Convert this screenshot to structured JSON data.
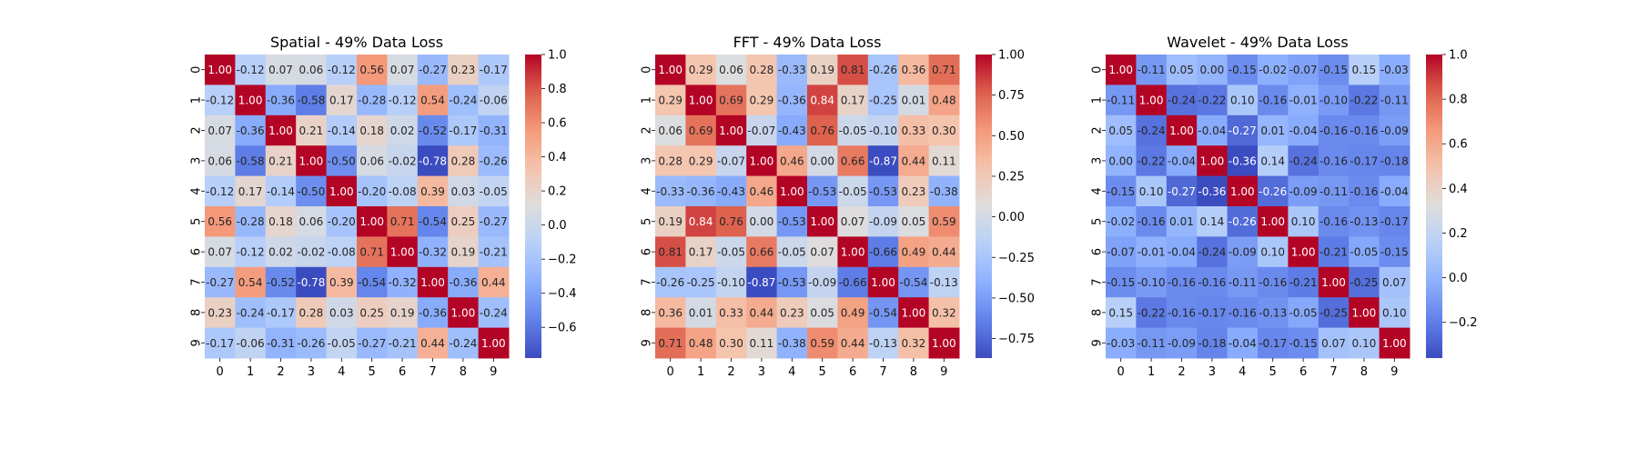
{
  "chart_data": [
    {
      "type": "heatmap",
      "title": "Spatial - 49% Data Loss",
      "xlabel": "",
      "ylabel": "",
      "x": [
        "0",
        "1",
        "2",
        "3",
        "4",
        "5",
        "6",
        "7",
        "8",
        "9"
      ],
      "y": [
        "0",
        "1",
        "2",
        "3",
        "4",
        "5",
        "6",
        "7",
        "8",
        "9"
      ],
      "values": [
        [
          1.0,
          -0.12,
          0.07,
          0.06,
          -0.12,
          0.56,
          0.07,
          -0.27,
          0.23,
          -0.17
        ],
        [
          -0.12,
          1.0,
          -0.36,
          -0.58,
          0.17,
          -0.28,
          -0.12,
          0.54,
          -0.24,
          -0.06
        ],
        [
          0.07,
          -0.36,
          1.0,
          0.21,
          -0.14,
          0.18,
          0.02,
          -0.52,
          -0.17,
          -0.31
        ],
        [
          0.06,
          -0.58,
          0.21,
          1.0,
          -0.5,
          0.06,
          -0.02,
          -0.78,
          0.28,
          -0.26
        ],
        [
          -0.12,
          0.17,
          -0.14,
          -0.5,
          1.0,
          -0.2,
          -0.08,
          0.39,
          0.03,
          -0.05
        ],
        [
          0.56,
          -0.28,
          0.18,
          0.06,
          -0.2,
          1.0,
          0.71,
          -0.54,
          0.25,
          -0.27
        ],
        [
          0.07,
          -0.12,
          0.02,
          -0.02,
          -0.08,
          0.71,
          1.0,
          -0.32,
          0.19,
          -0.21
        ],
        [
          -0.27,
          0.54,
          -0.52,
          -0.78,
          0.39,
          -0.54,
          -0.32,
          1.0,
          -0.36,
          0.44
        ],
        [
          0.23,
          -0.24,
          -0.17,
          0.28,
          0.03,
          0.25,
          0.19,
          -0.36,
          1.0,
          -0.24
        ],
        [
          -0.17,
          -0.06,
          -0.31,
          -0.26,
          -0.05,
          -0.27,
          -0.21,
          0.44,
          -0.24,
          1.0
        ]
      ],
      "colormap": "coolwarm",
      "vmin": -0.78,
      "vmax": 1.0,
      "colorbar_ticks": [
        "1.0",
        "0.8",
        "0.6",
        "0.4",
        "0.2",
        "0.0",
        "−0.2",
        "−0.4",
        "−0.6"
      ],
      "colorbar_values": [
        1.0,
        0.8,
        0.6,
        0.4,
        0.2,
        0.0,
        -0.2,
        -0.4,
        -0.6
      ]
    },
    {
      "type": "heatmap",
      "title": "FFT - 49% Data Loss",
      "xlabel": "",
      "ylabel": "",
      "x": [
        "0",
        "1",
        "2",
        "3",
        "4",
        "5",
        "6",
        "7",
        "8",
        "9"
      ],
      "y": [
        "0",
        "1",
        "2",
        "3",
        "4",
        "5",
        "6",
        "7",
        "8",
        "9"
      ],
      "values": [
        [
          1.0,
          0.29,
          0.06,
          0.28,
          -0.33,
          0.19,
          0.81,
          -0.26,
          0.36,
          0.71
        ],
        [
          0.29,
          1.0,
          0.69,
          0.29,
          -0.36,
          0.84,
          0.17,
          -0.25,
          0.01,
          0.48
        ],
        [
          0.06,
          0.69,
          1.0,
          -0.07,
          -0.43,
          0.76,
          -0.05,
          -0.1,
          0.33,
          0.3
        ],
        [
          0.28,
          0.29,
          -0.07,
          1.0,
          0.46,
          -0.0,
          0.66,
          -0.87,
          0.44,
          0.11
        ],
        [
          -0.33,
          -0.36,
          -0.43,
          0.46,
          1.0,
          -0.53,
          -0.05,
          -0.53,
          0.23,
          -0.38
        ],
        [
          0.19,
          0.84,
          0.76,
          -0.0,
          -0.53,
          1.0,
          0.07,
          -0.09,
          0.05,
          0.59
        ],
        [
          0.81,
          0.17,
          -0.05,
          0.66,
          -0.05,
          0.07,
          1.0,
          -0.66,
          0.49,
          0.44
        ],
        [
          -0.26,
          -0.25,
          -0.1,
          -0.87,
          -0.53,
          -0.09,
          -0.66,
          1.0,
          -0.54,
          -0.13
        ],
        [
          0.36,
          0.01,
          0.33,
          0.44,
          0.23,
          0.05,
          0.49,
          -0.54,
          1.0,
          0.32
        ],
        [
          0.71,
          0.48,
          0.3,
          0.11,
          -0.38,
          0.59,
          0.44,
          -0.13,
          0.32,
          1.0
        ]
      ],
      "colormap": "coolwarm",
      "vmin": -0.87,
      "vmax": 1.0,
      "colorbar_ticks": [
        "1.00",
        "0.75",
        "0.50",
        "0.25",
        "0.00",
        "−0.25",
        "−0.50",
        "−0.75"
      ],
      "colorbar_values": [
        1.0,
        0.75,
        0.5,
        0.25,
        0.0,
        -0.25,
        -0.5,
        -0.75
      ]
    },
    {
      "type": "heatmap",
      "title": "Wavelet - 49% Data Loss",
      "xlabel": "",
      "ylabel": "",
      "x": [
        "0",
        "1",
        "2",
        "3",
        "4",
        "5",
        "6",
        "7",
        "8",
        "9"
      ],
      "y": [
        "0",
        "1",
        "2",
        "3",
        "4",
        "5",
        "6",
        "7",
        "8",
        "9"
      ],
      "values": [
        [
          1.0,
          -0.11,
          0.05,
          -0.0,
          -0.15,
          -0.02,
          -0.07,
          -0.15,
          0.15,
          -0.03
        ],
        [
          -0.11,
          1.0,
          -0.24,
          -0.22,
          0.1,
          -0.16,
          -0.01,
          -0.1,
          -0.22,
          -0.11
        ],
        [
          0.05,
          -0.24,
          1.0,
          -0.04,
          -0.27,
          0.01,
          -0.04,
          -0.16,
          -0.16,
          -0.09
        ],
        [
          -0.0,
          -0.22,
          -0.04,
          1.0,
          -0.36,
          0.14,
          -0.24,
          -0.16,
          -0.17,
          -0.18
        ],
        [
          -0.15,
          0.1,
          -0.27,
          -0.36,
          1.0,
          -0.26,
          -0.09,
          -0.11,
          -0.16,
          -0.04
        ],
        [
          -0.02,
          -0.16,
          0.01,
          0.14,
          -0.26,
          1.0,
          0.1,
          -0.16,
          -0.13,
          -0.17
        ],
        [
          -0.07,
          -0.01,
          -0.04,
          -0.24,
          -0.09,
          0.1,
          1.0,
          -0.21,
          -0.05,
          -0.15
        ],
        [
          -0.15,
          -0.1,
          -0.16,
          -0.16,
          -0.11,
          -0.16,
          -0.21,
          1.0,
          -0.25,
          0.07
        ],
        [
          0.15,
          -0.22,
          -0.16,
          -0.17,
          -0.16,
          -0.13,
          -0.05,
          -0.25,
          1.0,
          0.1
        ],
        [
          -0.03,
          -0.11,
          -0.09,
          -0.18,
          -0.04,
          -0.17,
          -0.15,
          0.07,
          0.1,
          1.0
        ]
      ],
      "colormap": "coolwarm",
      "vmin": -0.36,
      "vmax": 1.0,
      "colorbar_ticks": [
        "1.0",
        "0.8",
        "0.6",
        "0.4",
        "0.2",
        "0.0",
        "−0.2"
      ],
      "colorbar_values": [
        1.0,
        0.8,
        0.6,
        0.4,
        0.2,
        0.0,
        -0.2
      ]
    }
  ]
}
